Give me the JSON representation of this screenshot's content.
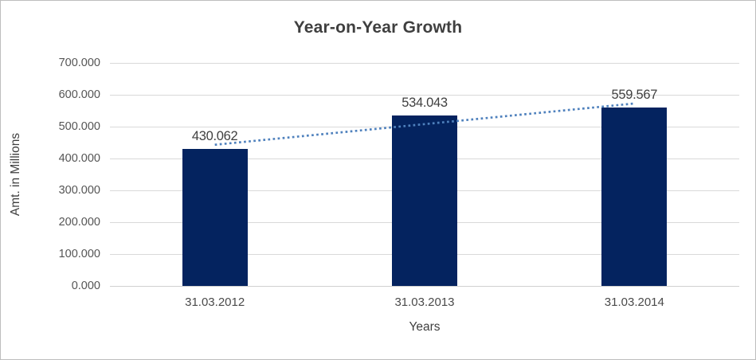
{
  "chart_data": {
    "type": "bar",
    "title": "Year-on-Year Growth",
    "categories": [
      "31.03.2012",
      "31.03.2013",
      "31.03.2014"
    ],
    "values": [
      430.062,
      534.043,
      559.567
    ],
    "data_labels": [
      "430.062",
      "534.043",
      "559.567"
    ],
    "xlabel": "Years",
    "ylabel": "Amt. in Millions",
    "ylim": [
      0,
      700
    ],
    "ytick_step": 100,
    "ytick_labels": [
      "0.000",
      "100.000",
      "200.000",
      "300.000",
      "400.000",
      "500.000",
      "600.000",
      "700.000"
    ],
    "grid": true,
    "legend": "none",
    "trendline": {
      "type": "linear",
      "style": "dotted"
    },
    "colors": {
      "bar": "#04235F",
      "trendline": "#4F81BD",
      "gridline": "#D9D9D9",
      "axis_line": "#D0D0D0",
      "title_text": "#3F3F3F",
      "tick_text": "#4A4A4A",
      "frame_border": "#BDBDBD"
    }
  }
}
